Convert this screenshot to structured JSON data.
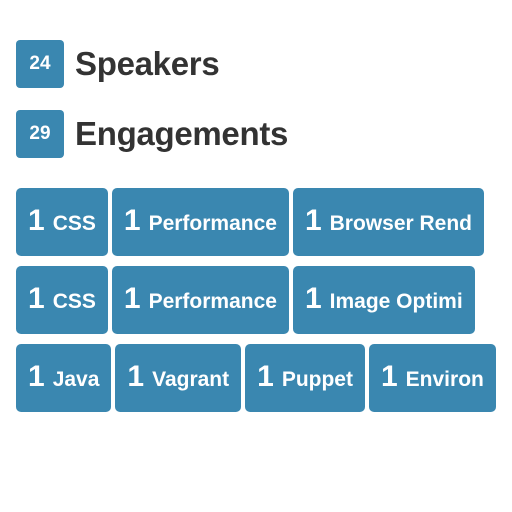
{
  "stats": {
    "speakers": {
      "count": "24",
      "label": "Speakers"
    },
    "engagements": {
      "count": "29",
      "label": "Engagements"
    }
  },
  "tag_rows": [
    [
      {
        "count": "1",
        "name": "CSS"
      },
      {
        "count": "1",
        "name": "Performance"
      },
      {
        "count": "1",
        "name": "Browser Rend"
      }
    ],
    [
      {
        "count": "1",
        "name": "CSS"
      },
      {
        "count": "1",
        "name": "Performance"
      },
      {
        "count": "1",
        "name": "Image Optimi"
      }
    ],
    [
      {
        "count": "1",
        "name": "Java"
      },
      {
        "count": "1",
        "name": "Vagrant"
      },
      {
        "count": "1",
        "name": "Puppet"
      },
      {
        "count": "1",
        "name": "Environ"
      }
    ]
  ],
  "colors": {
    "badge": "#3a87b0",
    "text_dark": "#333333",
    "text_light": "#ffffff"
  }
}
